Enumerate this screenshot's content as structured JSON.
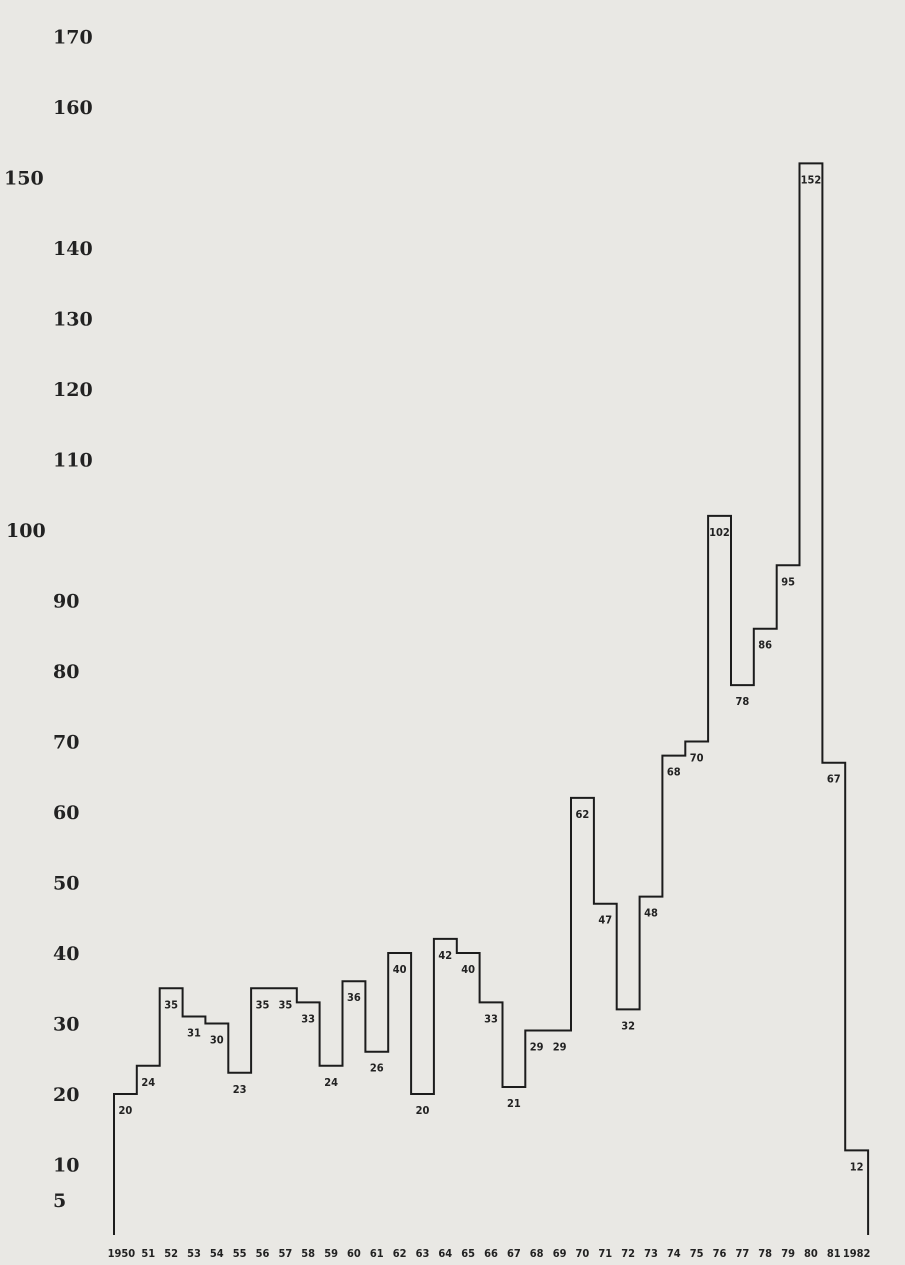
{
  "chart_data": {
    "type": "step",
    "title": "",
    "xlabel": "",
    "ylabel": "",
    "ylim": [
      0,
      170
    ],
    "grid": false,
    "legend": "none",
    "y_ticks": [
      5,
      10,
      20,
      30,
      40,
      50,
      60,
      70,
      80,
      90,
      100,
      110,
      120,
      130,
      140,
      150,
      160,
      170
    ],
    "categories": [
      "1950",
      "51",
      "52",
      "53",
      "54",
      "55",
      "56",
      "57",
      "58",
      "59",
      "60",
      "61",
      "62",
      "63",
      "64",
      "65",
      "66",
      "67",
      "68",
      "69",
      "70",
      "71",
      "72",
      "73",
      "74",
      "75",
      "76",
      "77",
      "78",
      "79",
      "80",
      "81",
      "1982"
    ],
    "values": [
      20,
      24,
      35,
      31,
      30,
      23,
      35,
      35,
      33,
      24,
      36,
      26,
      40,
      20,
      42,
      40,
      33,
      21,
      29,
      29,
      62,
      47,
      32,
      48,
      68,
      70,
      102,
      78,
      86,
      95,
      152,
      67,
      12
    ],
    "data_labels": [
      "20",
      "24",
      "35",
      "31",
      "30",
      "23",
      "35",
      "35",
      "33",
      "24",
      "36",
      "26",
      "40",
      "20",
      "42",
      "40",
      "33",
      "21",
      "29",
      "29",
      "62",
      "47",
      "32",
      "48",
      "68",
      "70",
      "102",
      "78",
      "86",
      "95",
      "152",
      "67",
      "12"
    ],
    "line_color": "#1c1c1c"
  }
}
